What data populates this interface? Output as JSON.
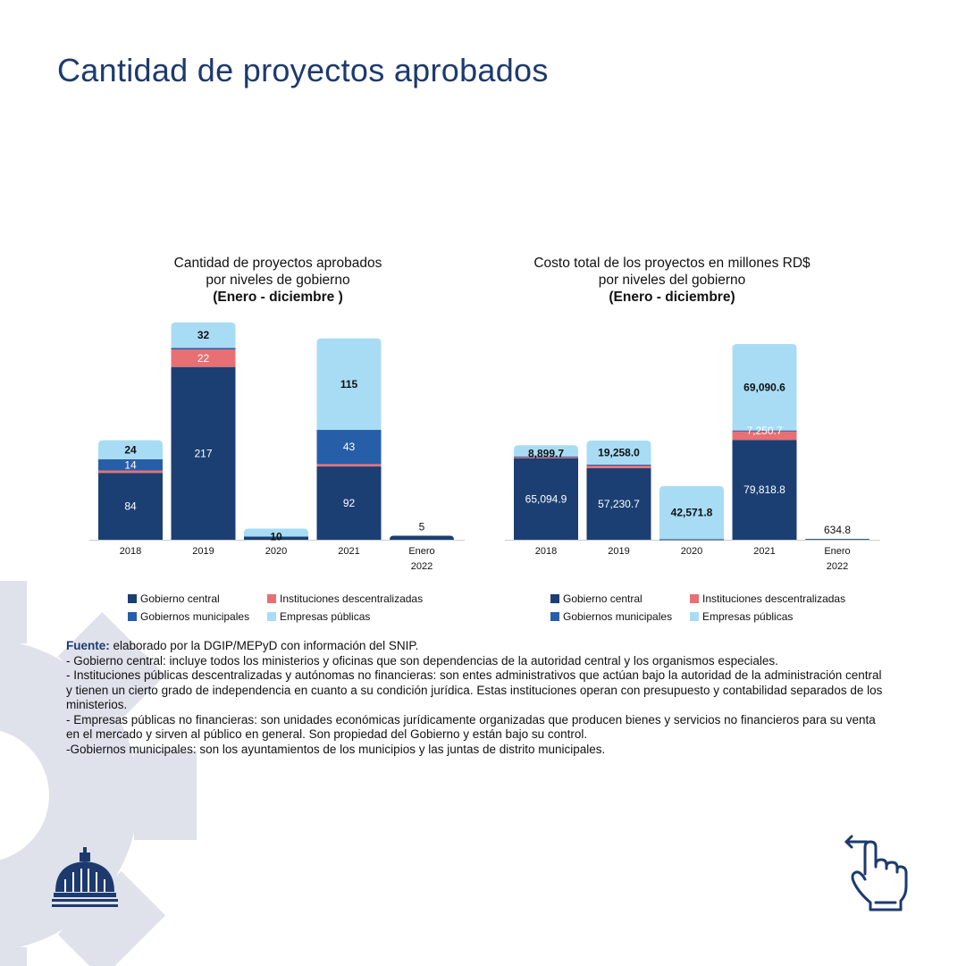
{
  "page": {
    "title": "Cantidad de proyectos aprobados"
  },
  "colors": {
    "gobierno_central": "#1b3f73",
    "instituciones_descentralizadas": "#e86f73",
    "gobiernos_municipales": "#275ea8",
    "empresas_publicas": "#a8dcf5",
    "title": "#1d3a6e",
    "gear": "#dfe1eb"
  },
  "legend": [
    {
      "label": "Gobierno central",
      "color": "#1b3f73"
    },
    {
      "label": "Instituciones descentralizadas",
      "color": "#e86f73"
    },
    {
      "label": "Gobiernos municipales",
      "color": "#275ea8"
    },
    {
      "label": "Empresas públicas",
      "color": "#a8dcf5"
    }
  ],
  "chart_data": [
    {
      "type": "bar",
      "stacked": true,
      "title": "Cantidad de proyectos aprobados",
      "subtitle": "por niveles de gobierno",
      "period": "(Enero - diciembre )",
      "categories": [
        "2018",
        "2019",
        "2020",
        "2021",
        "Enero 2022"
      ],
      "category_lines": [
        [
          "2018"
        ],
        [
          "2019"
        ],
        [
          "2020"
        ],
        [
          "2021"
        ],
        [
          "Enero",
          "2022"
        ]
      ],
      "ylim": [
        0,
        275
      ],
      "series": [
        {
          "name": "Gobierno central",
          "values": [
            84,
            217,
            4,
            92,
            5
          ]
        },
        {
          "name": "Instituciones descentralizadas",
          "values": [
            3,
            22,
            0,
            3,
            0
          ]
        },
        {
          "name": "Gobiernos municipales",
          "values": [
            14,
            2,
            0,
            43,
            0
          ]
        },
        {
          "name": "Empresas públicas",
          "values": [
            24,
            32,
            10,
            115,
            0
          ]
        }
      ],
      "labels": [
        [
          "84",
          null,
          "14",
          "24"
        ],
        [
          "217",
          "22",
          null,
          "32"
        ],
        [
          null,
          null,
          null,
          "10"
        ],
        [
          "92",
          null,
          "43",
          "115"
        ],
        [
          "5",
          null,
          null,
          null
        ]
      ]
    },
    {
      "type": "bar",
      "stacked": true,
      "title": "Costo total de los proyectos en millones RD$",
      "subtitle": "por niveles del gobierno",
      "period": "(Enero - diciembre)",
      "categories": [
        "2018",
        "2019",
        "2020",
        "2021",
        "Enero 2022"
      ],
      "category_lines": [
        [
          "2018"
        ],
        [
          "2019"
        ],
        [
          "2020"
        ],
        [
          "2021"
        ],
        [
          "Enero",
          "2022"
        ]
      ],
      "ylim": [
        0,
        175000
      ],
      "series": [
        {
          "name": "Gobierno central",
          "values": [
            65094.9,
            57230.7,
            400,
            79818.8,
            634.8
          ]
        },
        {
          "name": "Instituciones descentralizadas",
          "values": [
            1200,
            2500,
            0,
            7250.7,
            0
          ]
        },
        {
          "name": "Gobiernos municipales",
          "values": [
            300,
            300,
            0,
            300,
            0
          ]
        },
        {
          "name": "Empresas públicas",
          "values": [
            8899.7,
            19258.0,
            42571.8,
            69090.6,
            0
          ]
        }
      ],
      "labels": [
        [
          "65,094.9",
          null,
          null,
          "8,899.7"
        ],
        [
          "57,230.7",
          null,
          null,
          "19,258.0"
        ],
        [
          null,
          null,
          null,
          "42,571.8"
        ],
        [
          "79,818.8",
          "7,250.7",
          null,
          "69,090.6"
        ],
        [
          "634.8",
          null,
          null,
          null
        ]
      ]
    }
  ],
  "notes": {
    "source_label": "Fuente:",
    "source_text": " elaborado por la DGIP/MEPyD con información del SNIP.",
    "items": [
      "- Gobierno central: incluye todos los ministerios y oficinas que son dependencias de la autoridad central y los organismos especiales.",
      "- Instituciones públicas descentralizadas y autónomas no financieras: son entes administrativos que actúan bajo la autoridad de la administración central y tienen un cierto grado de independencia en cuanto a su condición jurídica. Estas instituciones operan con presupuesto y contabilidad separados de los ministerios.",
      "- Empresas públicas no financieras: son unidades económicas jurídicamente organizadas que producen bienes y servicios no financieros para su venta en el mercado y sirven al público en general. Son propiedad del Gobierno y están bajo su control.",
      "-Gobiernos municipales: son los ayuntamientos de los municipios y las juntas de distrito municipales."
    ]
  },
  "icons": {
    "logo": "government-dome-icon",
    "swipe": "swipe-hand-icon"
  }
}
